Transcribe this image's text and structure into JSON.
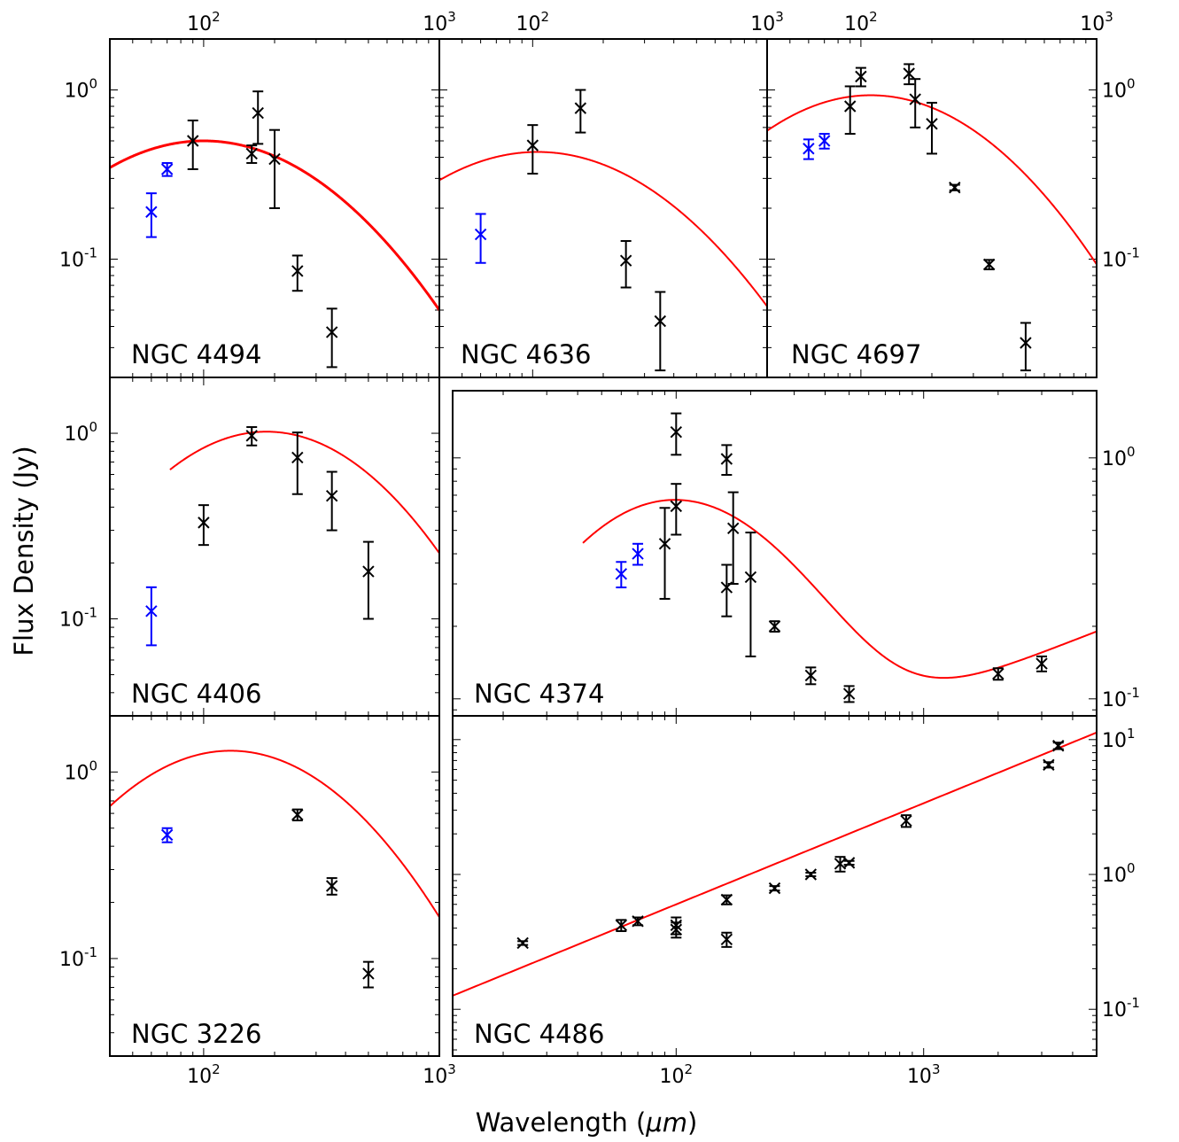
{
  "figure": {
    "ylabel": "Flux Density (Jy)",
    "xlabel_text": "Wavelength (",
    "xlabel_unit": "μm",
    "xlabel_close": ")"
  },
  "colors": {
    "fit": "#ff0000",
    "data": "#000000",
    "short": "#0000ff",
    "frame": "#000000"
  },
  "chart_data": [
    {
      "type": "scatter",
      "name": "NGC 4494",
      "xscale": "log",
      "yscale": "log",
      "xlim": [
        40,
        1000
      ],
      "ylim": [
        0.02,
        2.0
      ],
      "x_ticks": [
        {
          "value": 100,
          "label": "10^2"
        },
        {
          "value": 1000,
          "label": "10^3"
        }
      ],
      "y_ticks": [
        {
          "value": 0.1,
          "label": "10^-1"
        },
        {
          "value": 1,
          "label": "10^0"
        }
      ],
      "tick_labels_shown": {
        "top": true,
        "bottom": false,
        "left": true,
        "right": false
      },
      "model": {
        "shape": "peak",
        "peak_x": 100,
        "peak_y": 0.5,
        "width": 1.0
      },
      "points": [
        {
          "x": 60,
          "y": 0.19,
          "lo": 0.135,
          "hi": 0.245,
          "color": "blue"
        },
        {
          "x": 70,
          "y": 0.34,
          "lo": 0.31,
          "hi": 0.37,
          "color": "blue"
        },
        {
          "x": 90,
          "y": 0.5,
          "lo": 0.34,
          "hi": 0.66,
          "color": "black"
        },
        {
          "x": 160,
          "y": 0.42,
          "lo": 0.37,
          "hi": 0.47,
          "color": "black"
        },
        {
          "x": 170,
          "y": 0.73,
          "lo": 0.48,
          "hi": 0.98,
          "color": "black"
        },
        {
          "x": 200,
          "y": 0.39,
          "lo": 0.2,
          "hi": 0.58,
          "color": "black"
        },
        {
          "x": 250,
          "y": 0.085,
          "lo": 0.065,
          "hi": 0.105,
          "color": "black"
        },
        {
          "x": 350,
          "y": 0.037,
          "lo": 0.023,
          "hi": 0.051,
          "color": "black"
        }
      ]
    },
    {
      "type": "scatter",
      "name": "NGC 4636",
      "xscale": "log",
      "yscale": "log",
      "xlim": [
        40,
        1000
      ],
      "ylim": [
        0.02,
        2.0
      ],
      "x_ticks": [
        {
          "value": 100,
          "label": "10^2"
        },
        {
          "value": 1000,
          "label": "10^3"
        }
      ],
      "y_ticks": [
        {
          "value": 0.1,
          "label": ""
        },
        {
          "value": 1,
          "label": ""
        }
      ],
      "tick_labels_shown": {
        "top": true,
        "bottom": false,
        "left": false,
        "right": false
      },
      "model": {
        "shape": "peak",
        "peak_x": 105,
        "peak_y": 0.43,
        "width": 1.05
      },
      "points": [
        {
          "x": 60,
          "y": 0.14,
          "lo": 0.095,
          "hi": 0.185,
          "color": "blue"
        },
        {
          "x": 100,
          "y": 0.47,
          "lo": 0.32,
          "hi": 0.62,
          "color": "black"
        },
        {
          "x": 160,
          "y": 0.78,
          "lo": 0.56,
          "hi": 1.0,
          "color": "black"
        },
        {
          "x": 250,
          "y": 0.098,
          "lo": 0.068,
          "hi": 0.128,
          "color": "black"
        },
        {
          "x": 350,
          "y": 0.043,
          "lo": 0.022,
          "hi": 0.064,
          "color": "black"
        }
      ]
    },
    {
      "type": "scatter",
      "name": "NGC 4697",
      "xscale": "log",
      "yscale": "log",
      "xlim": [
        40,
        1000
      ],
      "ylim": [
        0.02,
        2.0
      ],
      "x_ticks": [
        {
          "value": 100,
          "label": "10^2"
        },
        {
          "value": 1000,
          "label": "10^3"
        }
      ],
      "y_ticks": [
        {
          "value": 0.1,
          "label": "10^-1"
        },
        {
          "value": 1,
          "label": "10^0"
        }
      ],
      "tick_labels_shown": {
        "top": true,
        "bottom": false,
        "left": false,
        "right": true
      },
      "model": {
        "shape": "peak",
        "peak_x": 110,
        "peak_y": 0.93,
        "width": 0.92
      },
      "points": [
        {
          "x": 60,
          "y": 0.45,
          "lo": 0.39,
          "hi": 0.51,
          "color": "blue"
        },
        {
          "x": 70,
          "y": 0.5,
          "lo": 0.45,
          "hi": 0.55,
          "color": "blue"
        },
        {
          "x": 90,
          "y": 0.8,
          "lo": 0.55,
          "hi": 1.05,
          "color": "black"
        },
        {
          "x": 100,
          "y": 1.2,
          "lo": 1.05,
          "hi": 1.35,
          "color": "black"
        },
        {
          "x": 160,
          "y": 1.25,
          "lo": 1.08,
          "hi": 1.42,
          "color": "black"
        },
        {
          "x": 170,
          "y": 0.88,
          "lo": 0.6,
          "hi": 1.16,
          "color": "black"
        },
        {
          "x": 200,
          "y": 0.63,
          "lo": 0.42,
          "hi": 0.84,
          "color": "black"
        },
        {
          "x": 250,
          "y": 0.265,
          "lo": 0.255,
          "hi": 0.275,
          "color": "black"
        },
        {
          "x": 350,
          "y": 0.093,
          "lo": 0.087,
          "hi": 0.099,
          "color": "black"
        },
        {
          "x": 500,
          "y": 0.032,
          "lo": 0.022,
          "hi": 0.042,
          "color": "black"
        }
      ]
    },
    {
      "type": "scatter",
      "name": "NGC 4406",
      "xscale": "log",
      "yscale": "log",
      "xlim": [
        40,
        1000
      ],
      "ylim": [
        0.03,
        2.0
      ],
      "x_ticks": [
        {
          "value": 100,
          "label": ""
        },
        {
          "value": 1000,
          "label": ""
        }
      ],
      "y_ticks": [
        {
          "value": 0.1,
          "label": "10^-1"
        },
        {
          "value": 1,
          "label": "10^0"
        }
      ],
      "tick_labels_shown": {
        "top": false,
        "bottom": false,
        "left": true,
        "right": false
      },
      "model": {
        "shape": "peak",
        "peak_x": 185,
        "peak_y": 1.02,
        "width": 0.82,
        "x_start": 72
      },
      "points": [
        {
          "x": 60,
          "y": 0.11,
          "lo": 0.072,
          "hi": 0.148,
          "color": "blue"
        },
        {
          "x": 100,
          "y": 0.33,
          "lo": 0.25,
          "hi": 0.41,
          "color": "black"
        },
        {
          "x": 160,
          "y": 0.97,
          "lo": 0.86,
          "hi": 1.08,
          "color": "black"
        },
        {
          "x": 250,
          "y": 0.74,
          "lo": 0.47,
          "hi": 1.01,
          "color": "black"
        },
        {
          "x": 350,
          "y": 0.46,
          "lo": 0.3,
          "hi": 0.62,
          "color": "black"
        },
        {
          "x": 500,
          "y": 0.18,
          "lo": 0.1,
          "hi": 0.26,
          "color": "black"
        }
      ]
    },
    {
      "type": "scatter",
      "name": "NGC 4374",
      "xscale": "log",
      "yscale": "log",
      "xlim": [
        12.5,
        5000
      ],
      "ylim": [
        0.085,
        1.9
      ],
      "x_ticks": [
        {
          "value": 100,
          "label": ""
        },
        {
          "value": 1000,
          "label": ""
        }
      ],
      "y_ticks": [
        {
          "value": 0.1,
          "label": "10^-1"
        },
        {
          "value": 1,
          "label": "10^0"
        }
      ],
      "tick_labels_shown": {
        "top": false,
        "bottom": false,
        "left": false,
        "right": true
      },
      "model": {
        "shape": "peak_plus_powerlaw",
        "peak_x": 97,
        "peak_y": 0.63,
        "width": 0.73,
        "powerlaw_norm_x": 1000,
        "powerlaw_norm_y": 0.1,
        "powerlaw_slope": 0.4,
        "x_start": 42
      },
      "points": [
        {
          "x": 60,
          "y": 0.33,
          "lo": 0.29,
          "hi": 0.37,
          "color": "blue"
        },
        {
          "x": 70,
          "y": 0.4,
          "lo": 0.36,
          "hi": 0.44,
          "color": "blue"
        },
        {
          "x": 90,
          "y": 0.44,
          "lo": 0.26,
          "hi": 0.62,
          "color": "black"
        },
        {
          "x": 100,
          "y": 0.63,
          "lo": 0.48,
          "hi": 0.78,
          "color": "black"
        },
        {
          "x": 100,
          "y": 1.28,
          "lo": 1.03,
          "hi": 1.53,
          "color": "black"
        },
        {
          "x": 160,
          "y": 0.99,
          "lo": 0.85,
          "hi": 1.13,
          "color": "black"
        },
        {
          "x": 160,
          "y": 0.29,
          "lo": 0.22,
          "hi": 0.36,
          "color": "black"
        },
        {
          "x": 170,
          "y": 0.51,
          "lo": 0.3,
          "hi": 0.72,
          "color": "black"
        },
        {
          "x": 200,
          "y": 0.32,
          "lo": 0.15,
          "hi": 0.49,
          "color": "black"
        },
        {
          "x": 250,
          "y": 0.2,
          "lo": 0.19,
          "hi": 0.21,
          "color": "black"
        },
        {
          "x": 350,
          "y": 0.125,
          "lo": 0.115,
          "hi": 0.135,
          "color": "black"
        },
        {
          "x": 500,
          "y": 0.105,
          "lo": 0.097,
          "hi": 0.113,
          "color": "black"
        },
        {
          "x": 2000,
          "y": 0.127,
          "lo": 0.12,
          "hi": 0.134,
          "color": "black"
        },
        {
          "x": 3000,
          "y": 0.14,
          "lo": 0.13,
          "hi": 0.15,
          "color": "black"
        }
      ]
    },
    {
      "type": "scatter",
      "name": "NGC 3226",
      "xscale": "log",
      "yscale": "log",
      "xlim": [
        40,
        1000
      ],
      "ylim": [
        0.03,
        2.0
      ],
      "x_ticks": [
        {
          "value": 100,
          "label": "10^2"
        },
        {
          "value": 1000,
          "label": "10^3"
        }
      ],
      "y_ticks": [
        {
          "value": 0.1,
          "label": "10^-1"
        },
        {
          "value": 1,
          "label": "10^0"
        }
      ],
      "tick_labels_shown": {
        "top": false,
        "bottom": true,
        "left": true,
        "right": false
      },
      "model": {
        "shape": "peak",
        "peak_x": 130,
        "peak_y": 1.3,
        "width": 0.88
      },
      "points": [
        {
          "x": 70,
          "y": 0.46,
          "lo": 0.42,
          "hi": 0.5,
          "color": "blue"
        },
        {
          "x": 250,
          "y": 0.59,
          "lo": 0.55,
          "hi": 0.63,
          "color": "black"
        },
        {
          "x": 350,
          "y": 0.245,
          "lo": 0.22,
          "hi": 0.27,
          "color": "black"
        },
        {
          "x": 500,
          "y": 0.083,
          "lo": 0.07,
          "hi": 0.096,
          "color": "black"
        }
      ]
    },
    {
      "type": "scatter",
      "name": "NGC 4486",
      "xscale": "log",
      "yscale": "log",
      "xlim": [
        12.5,
        5000
      ],
      "ylim": [
        0.045,
        15
      ],
      "x_ticks": [
        {
          "value": 100,
          "label": "10^2"
        },
        {
          "value": 1000,
          "label": "10^3"
        }
      ],
      "y_ticks": [
        {
          "value": 0.1,
          "label": "10^-1"
        },
        {
          "value": 1,
          "label": "10^0"
        },
        {
          "value": 10,
          "label": "10^1"
        }
      ],
      "tick_labels_shown": {
        "top": false,
        "bottom": true,
        "left": false,
        "right": true
      },
      "model": {
        "shape": "powerlaw",
        "norm_x": 100,
        "norm_y": 0.6,
        "slope": 0.75
      },
      "points": [
        {
          "x": 24,
          "y": 0.31,
          "lo": 0.3,
          "hi": 0.32,
          "color": "black"
        },
        {
          "x": 60,
          "y": 0.42,
          "lo": 0.38,
          "hi": 0.46,
          "color": "black"
        },
        {
          "x": 70,
          "y": 0.45,
          "lo": 0.42,
          "hi": 0.48,
          "color": "black"
        },
        {
          "x": 100,
          "y": 0.42,
          "lo": 0.36,
          "hi": 0.48,
          "color": "black"
        },
        {
          "x": 100,
          "y": 0.39,
          "lo": 0.34,
          "hi": 0.44,
          "color": "black"
        },
        {
          "x": 160,
          "y": 0.65,
          "lo": 0.6,
          "hi": 0.7,
          "color": "black"
        },
        {
          "x": 160,
          "y": 0.33,
          "lo": 0.29,
          "hi": 0.37,
          "color": "black"
        },
        {
          "x": 250,
          "y": 0.79,
          "lo": 0.76,
          "hi": 0.82,
          "color": "black"
        },
        {
          "x": 350,
          "y": 1.0,
          "lo": 0.97,
          "hi": 1.03,
          "color": "black"
        },
        {
          "x": 460,
          "y": 1.2,
          "lo": 1.05,
          "hi": 1.35,
          "color": "black"
        },
        {
          "x": 500,
          "y": 1.22,
          "lo": 1.18,
          "hi": 1.26,
          "color": "black"
        },
        {
          "x": 850,
          "y": 2.5,
          "lo": 2.25,
          "hi": 2.75,
          "color": "black"
        },
        {
          "x": 3200,
          "y": 6.5,
          "lo": 6.2,
          "hi": 6.8,
          "color": "black"
        },
        {
          "x": 3500,
          "y": 9.0,
          "lo": 8.5,
          "hi": 9.5,
          "color": "black"
        }
      ]
    }
  ]
}
